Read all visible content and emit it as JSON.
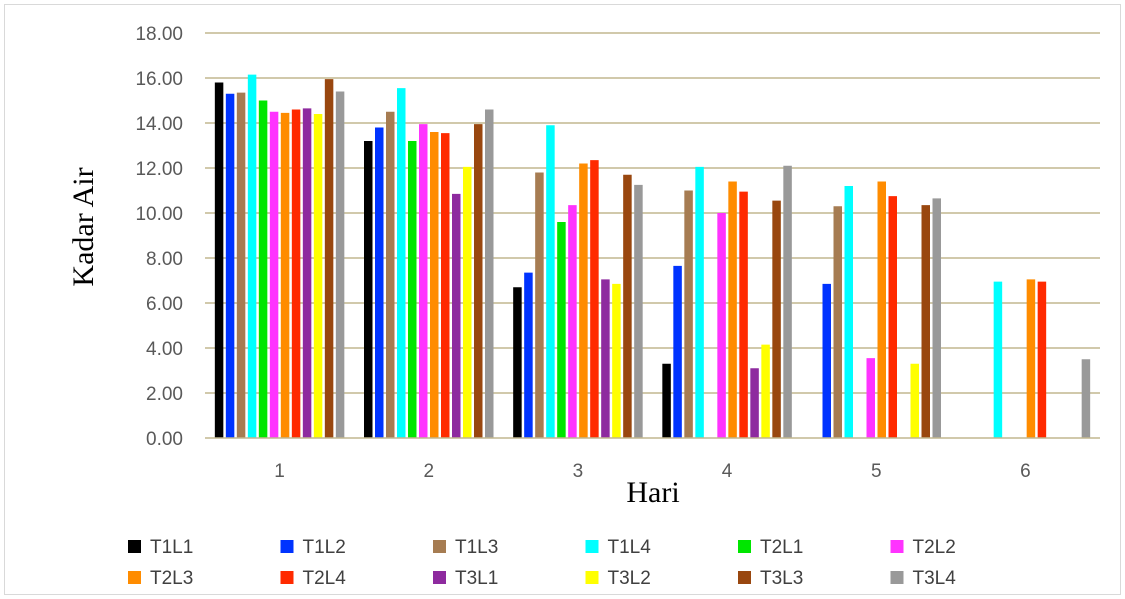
{
  "chart_data": {
    "type": "bar",
    "title": "",
    "xlabel": "Hari",
    "ylabel": "Kadar Air",
    "categories": [
      "1",
      "2",
      "3",
      "4",
      "5",
      "6"
    ],
    "ylim": [
      0,
      18
    ],
    "yticks": [
      "0.00",
      "2.00",
      "4.00",
      "6.00",
      "8.00",
      "10.00",
      "12.00",
      "14.00",
      "16.00",
      "18.00"
    ],
    "grid": true,
    "legend_position": "bottom",
    "series": [
      {
        "name": "T1L1",
        "color": "#000000",
        "values": [
          15.8,
          13.2,
          6.7,
          3.3,
          null,
          null
        ]
      },
      {
        "name": "T1L2",
        "color": "#0033ff",
        "values": [
          15.3,
          13.8,
          7.35,
          7.65,
          6.85,
          null
        ]
      },
      {
        "name": "T1L3",
        "color": "#a67c52",
        "values": [
          15.35,
          14.5,
          11.8,
          11.0,
          10.3,
          null
        ]
      },
      {
        "name": "T1L4",
        "color": "#00ffff",
        "values": [
          16.15,
          15.55,
          13.9,
          12.05,
          11.2,
          6.95
        ]
      },
      {
        "name": "T2L1",
        "color": "#00e600",
        "values": [
          15.0,
          13.2,
          9.6,
          null,
          null,
          null
        ]
      },
      {
        "name": "T2L2",
        "color": "#ff33ff",
        "values": [
          14.5,
          13.95,
          10.35,
          10.0,
          3.55,
          null
        ]
      },
      {
        "name": "T2L3",
        "color": "#ff8c00",
        "values": [
          14.45,
          13.6,
          12.2,
          11.4,
          11.4,
          7.05
        ]
      },
      {
        "name": "T2L4",
        "color": "#ff2a00",
        "values": [
          14.6,
          13.55,
          12.35,
          10.95,
          10.75,
          6.95
        ]
      },
      {
        "name": "T3L1",
        "color": "#8e2a9f",
        "values": [
          14.65,
          10.85,
          7.05,
          3.1,
          null,
          null
        ]
      },
      {
        "name": "T3L2",
        "color": "#ffff00",
        "values": [
          14.4,
          12.05,
          6.85,
          4.15,
          3.3,
          null
        ]
      },
      {
        "name": "T3L3",
        "color": "#99470f",
        "values": [
          15.95,
          13.95,
          11.7,
          10.55,
          10.35,
          null
        ]
      },
      {
        "name": "T3L4",
        "color": "#999999",
        "values": [
          15.4,
          14.6,
          11.25,
          12.1,
          10.65,
          3.5
        ]
      }
    ]
  }
}
